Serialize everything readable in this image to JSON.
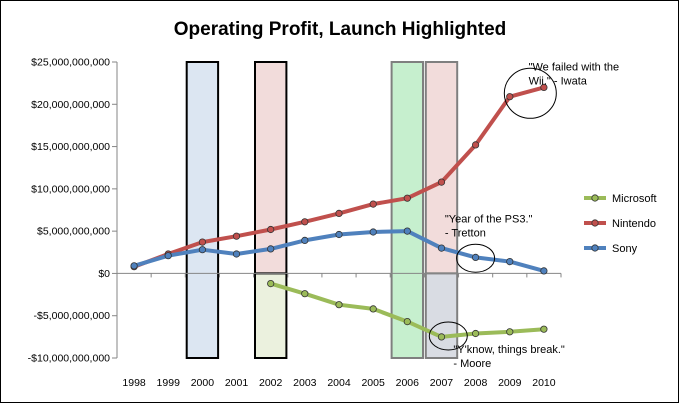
{
  "chart_data": {
    "type": "line",
    "title": "Operating Profit, Launch Highlighted",
    "xlabel": "",
    "ylabel": "",
    "x": [
      1998,
      1999,
      2000,
      2001,
      2002,
      2003,
      2004,
      2005,
      2006,
      2007,
      2008,
      2009,
      2010
    ],
    "ylim": [
      -10000000000,
      25000000000
    ],
    "yticks": [
      {
        "value": 25000000000,
        "label": "$25,000,000,000"
      },
      {
        "value": 20000000000,
        "label": "$20,000,000,000"
      },
      {
        "value": 15000000000,
        "label": "$15,000,000,000"
      },
      {
        "value": 10000000000,
        "label": "$10,000,000,000"
      },
      {
        "value": 5000000000,
        "label": "$5,000,000,000"
      },
      {
        "value": 0,
        "label": "$0"
      },
      {
        "value": -5000000000,
        "label": "-$5,000,000,000"
      },
      {
        "value": -10000000000,
        "label": "-$10,000,000,000"
      }
    ],
    "grid": false,
    "legend_position": "right",
    "series": [
      {
        "name": "Microsoft",
        "color": "#9BBB59",
        "values": [
          null,
          null,
          null,
          null,
          -1200000000,
          -2400000000,
          -3700000000,
          -4200000000,
          -5700000000,
          -7500000000,
          -7100000000,
          -6900000000,
          -6600000000
        ]
      },
      {
        "name": "Nintendo",
        "color": "#C0504D",
        "values": [
          800000000,
          2300000000,
          3700000000,
          4400000000,
          5200000000,
          6100000000,
          7100000000,
          8200000000,
          8900000000,
          10800000000,
          15200000000,
          20900000000,
          22000000000
        ]
      },
      {
        "name": "Sony",
        "color": "#4F81BD",
        "values": [
          900000000,
          2100000000,
          2800000000,
          2300000000,
          2900000000,
          3900000000,
          4600000000,
          4900000000,
          5000000000,
          3000000000,
          1900000000,
          1400000000,
          300000000
        ]
      }
    ],
    "highlights": [
      {
        "year": 2000,
        "y_top": 25000000000,
        "y_bottom": -10000000000,
        "fill": "#DCE6F2",
        "stroke": "#000000"
      },
      {
        "year": 2002,
        "y_top": 25000000000,
        "y_bottom": 0,
        "fill": "#F2DCDB",
        "stroke": "#000000"
      },
      {
        "year": 2002,
        "y_top": 0,
        "y_bottom": -10000000000,
        "fill": "#EBF1DE",
        "stroke": "#000000"
      },
      {
        "year": 2006,
        "y_top": 25000000000,
        "y_bottom": -10000000000,
        "fill": "#C6EFCE",
        "stroke": "#7F7F7F"
      },
      {
        "year": 2007,
        "y_top": 25000000000,
        "y_bottom": 0,
        "fill": "#F2DCDB",
        "stroke": "#7F7F7F"
      },
      {
        "year": 2007,
        "y_top": 0,
        "y_bottom": -10000000000,
        "fill": "#D9DCE3",
        "stroke": "#7F7F7F"
      }
    ],
    "annotations": [
      {
        "lines": [
          "\"We failed with the",
          "Wii.\" - Iwata"
        ],
        "circle_year": 2009.6,
        "circle_value": 21300000000,
        "text_year": 2009.55,
        "text_value": 24000000000
      },
      {
        "lines": [
          "\"Year of the PS3.\"",
          "- Tretton"
        ],
        "circle_year": 2008.0,
        "circle_value": 1800000000,
        "text_year": 2007.1,
        "text_value": 6000000000
      },
      {
        "lines": [
          "\"Y'know, things break.\"",
          "- Moore"
        ],
        "circle_year": 2007.2,
        "circle_value": -7400000000,
        "text_year": 2007.35,
        "text_value": -9400000000
      }
    ]
  }
}
